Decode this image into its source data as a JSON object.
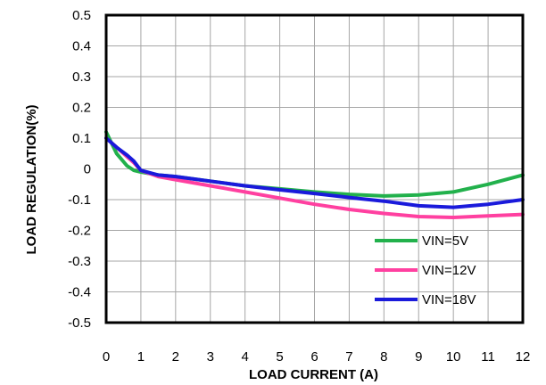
{
  "chart_data": {
    "type": "line",
    "title": "",
    "xlabel": "LOAD CURRENT (A)",
    "ylabel": "LOAD REGULATION(%)",
    "xlim": [
      0,
      12
    ],
    "ylim": [
      -0.5,
      0.5
    ],
    "x_ticks": [
      "0",
      "1",
      "2",
      "3",
      "4",
      "5",
      "6",
      "7",
      "8",
      "9",
      "10",
      "11",
      "12"
    ],
    "y_ticks": [
      "0.5",
      "0.4",
      "0.3",
      "0.2",
      "0.1",
      "0",
      "-0.1",
      "-0.2",
      "-0.3",
      "-0.4",
      "-0.5"
    ],
    "grid": true,
    "legend_position": "bottom-right",
    "series": [
      {
        "name": "VIN=5V",
        "color": "#22b14c",
        "points": [
          [
            0,
            0.12
          ],
          [
            0.3,
            0.05
          ],
          [
            0.6,
            0.01
          ],
          [
            0.8,
            -0.005
          ],
          [
            1,
            -0.01
          ],
          [
            1.5,
            -0.02
          ],
          [
            2,
            -0.025
          ],
          [
            3,
            -0.04
          ],
          [
            4,
            -0.055
          ],
          [
            5,
            -0.065
          ],
          [
            6,
            -0.075
          ],
          [
            7,
            -0.083
          ],
          [
            8,
            -0.088
          ],
          [
            9,
            -0.085
          ],
          [
            10,
            -0.075
          ],
          [
            11,
            -0.05
          ],
          [
            12,
            -0.02
          ]
        ]
      },
      {
        "name": "VIN=12V",
        "color": "#ff40a0",
        "points": [
          [
            0,
            0.1
          ],
          [
            0.3,
            0.07
          ],
          [
            0.6,
            0.04
          ],
          [
            0.8,
            0.02
          ],
          [
            1,
            -0.005
          ],
          [
            1.5,
            -0.025
          ],
          [
            2,
            -0.035
          ],
          [
            3,
            -0.055
          ],
          [
            4,
            -0.075
          ],
          [
            5,
            -0.095
          ],
          [
            6,
            -0.115
          ],
          [
            7,
            -0.132
          ],
          [
            8,
            -0.145
          ],
          [
            9,
            -0.155
          ],
          [
            10,
            -0.158
          ],
          [
            11,
            -0.153
          ],
          [
            12,
            -0.148
          ]
        ]
      },
      {
        "name": "VIN=18V",
        "color": "#1a1adb",
        "points": [
          [
            0,
            0.1
          ],
          [
            0.3,
            0.07
          ],
          [
            0.6,
            0.045
          ],
          [
            0.8,
            0.025
          ],
          [
            1,
            -0.005
          ],
          [
            1.5,
            -0.02
          ],
          [
            2,
            -0.025
          ],
          [
            3,
            -0.04
          ],
          [
            4,
            -0.055
          ],
          [
            5,
            -0.068
          ],
          [
            6,
            -0.08
          ],
          [
            7,
            -0.093
          ],
          [
            8,
            -0.105
          ],
          [
            9,
            -0.12
          ],
          [
            10,
            -0.125
          ],
          [
            11,
            -0.115
          ],
          [
            12,
            -0.1
          ]
        ]
      }
    ]
  }
}
